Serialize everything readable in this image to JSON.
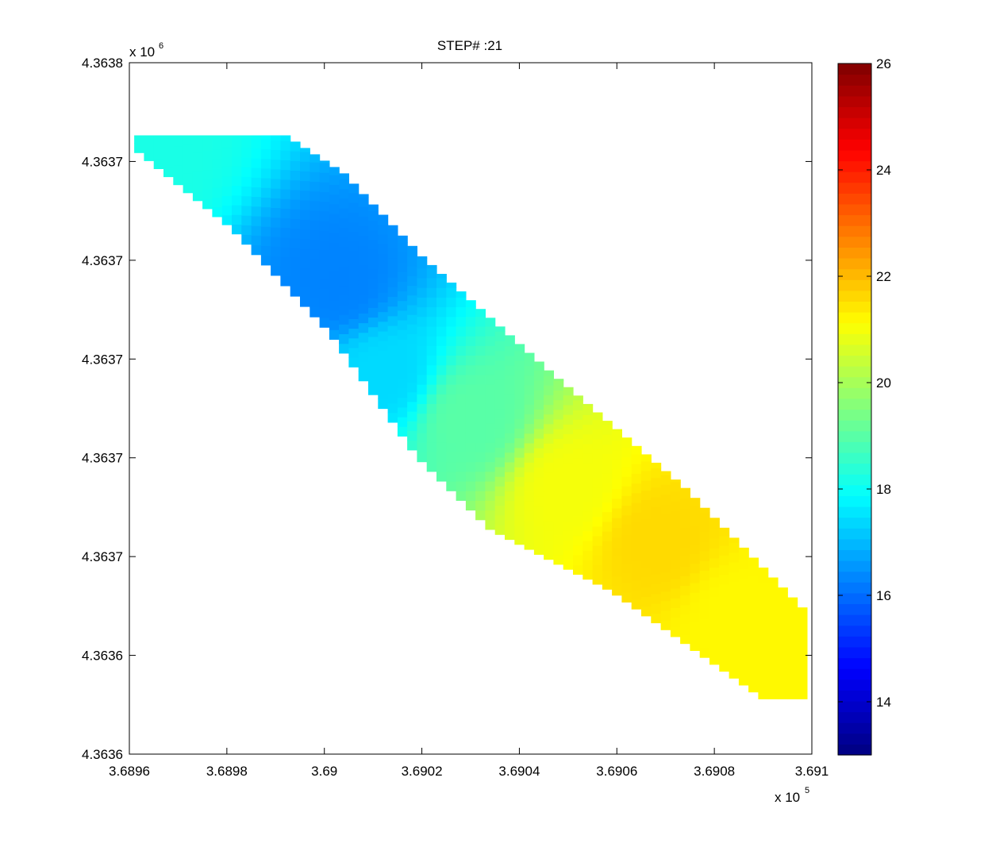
{
  "chart_data": {
    "type": "heatmap",
    "title": "STEP# :21",
    "xlabel": "",
    "ylabel": "",
    "x_exponent_label": "x 10",
    "x_exponent_power": "5",
    "y_exponent_label": "x 10",
    "y_exponent_power": "6",
    "x_ticks": [
      "3.6896",
      "3.6898",
      "3.69",
      "3.6902",
      "3.6904",
      "3.6906",
      "3.6908",
      "3.691"
    ],
    "y_ticks": [
      "4.3638",
      "4.3637",
      "4.3637",
      "4.3637",
      "4.3637",
      "4.3637",
      "4.3636",
      "4.3636"
    ],
    "xlim": [
      368960,
      369100
    ],
    "ylim": [
      4363600,
      4363800
    ],
    "colorbar": {
      "colormap": "jet",
      "clim": [
        13,
        26
      ],
      "ticks": [
        "26",
        "24",
        "22",
        "20",
        "18",
        "16",
        "14"
      ],
      "tick_values": [
        26,
        24,
        22,
        20,
        18,
        16,
        14
      ]
    },
    "field": {
      "description_units": "value at (x, y) in data units",
      "upper_edge_y": 4363779,
      "region_polyline_upper": [
        [
          368961,
          4363779
        ],
        [
          368991,
          4363779
        ],
        [
          369003,
          4363768
        ],
        [
          369019,
          4363744
        ],
        [
          369045,
          4363711
        ],
        [
          369073,
          4363677
        ],
        [
          369098,
          4363641
        ]
      ],
      "region_polyline_lower": [
        [
          368961,
          4363774
        ],
        [
          368980,
          4363752
        ],
        [
          369000,
          4363722
        ],
        [
          369018,
          4363686
        ],
        [
          369033,
          4363665
        ],
        [
          369058,
          4363647
        ],
        [
          369089,
          4363616
        ]
      ],
      "hotspots": [
        {
          "x": 369003,
          "y": 4363736,
          "value": 16.3
        },
        {
          "x": 369012,
          "y": 4363710,
          "value": 17.4
        },
        {
          "x": 369030,
          "y": 4363697,
          "value": 19.0
        },
        {
          "x": 369050,
          "y": 4363677,
          "value": 21.0
        },
        {
          "x": 369068,
          "y": 4363662,
          "value": 21.6
        },
        {
          "x": 369085,
          "y": 4363640,
          "value": 21.2
        },
        {
          "x": 368965,
          "y": 4363775,
          "value": 18.2
        }
      ]
    }
  }
}
